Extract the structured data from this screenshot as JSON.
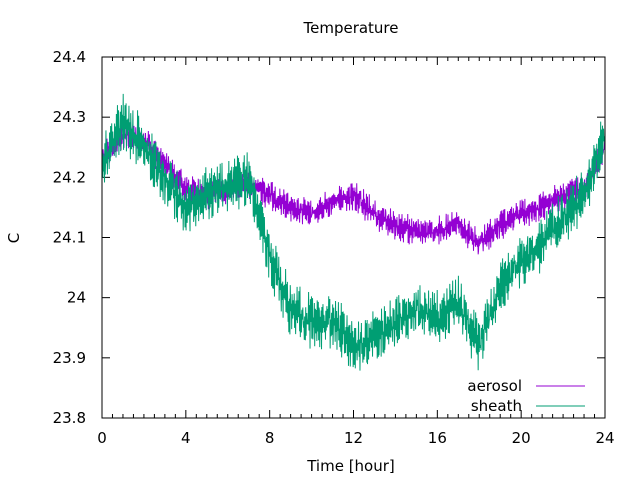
{
  "chart_data": {
    "type": "line",
    "title": "Temperature",
    "xlabel": "Time [hour]",
    "ylabel": "C",
    "xlim": [
      0,
      24
    ],
    "ylim": [
      23.8,
      24.4
    ],
    "xticks": [
      0,
      4,
      8,
      12,
      16,
      20,
      24
    ],
    "xtick_labels": [
      "0",
      "4",
      "8",
      "12",
      "16",
      "20",
      "24"
    ],
    "yticks": [
      23.8,
      23.9,
      24.0,
      24.1,
      24.2,
      24.3,
      24.4
    ],
    "ytick_labels": [
      "23.8",
      "23.9",
      "24",
      "24.1",
      "24.2",
      "24.3",
      "24.4"
    ],
    "grid": false,
    "legend_position": "bottom-right",
    "series": [
      {
        "name": "aerosol",
        "color": "#9400d3",
        "noise": 0.024,
        "x": [
          0,
          1,
          2,
          3,
          4,
          5,
          6,
          7,
          8,
          9,
          10,
          11,
          12,
          13,
          14,
          15,
          16,
          17,
          18,
          19,
          20,
          21,
          22,
          23,
          24
        ],
        "y": [
          24.23,
          24.27,
          24.26,
          24.22,
          24.18,
          24.17,
          24.18,
          24.19,
          24.17,
          24.15,
          24.14,
          24.16,
          24.17,
          24.14,
          24.12,
          24.11,
          24.11,
          24.12,
          24.09,
          24.12,
          24.14,
          24.15,
          24.17,
          24.18,
          24.25
        ]
      },
      {
        "name": "sheath",
        "color": "#009e73",
        "noise": 0.045,
        "x": [
          0,
          1,
          2,
          3,
          4,
          5,
          6,
          7,
          8,
          9,
          10,
          11,
          12,
          13,
          14,
          15,
          16,
          17,
          18,
          19,
          20,
          21,
          22,
          23,
          24
        ],
        "y": [
          24.22,
          24.29,
          24.25,
          24.2,
          24.15,
          24.17,
          24.19,
          24.2,
          24.07,
          23.98,
          23.96,
          23.96,
          23.92,
          23.93,
          23.96,
          23.98,
          23.97,
          23.99,
          23.92,
          24.02,
          24.06,
          24.09,
          24.13,
          24.17,
          24.27
        ]
      }
    ]
  }
}
